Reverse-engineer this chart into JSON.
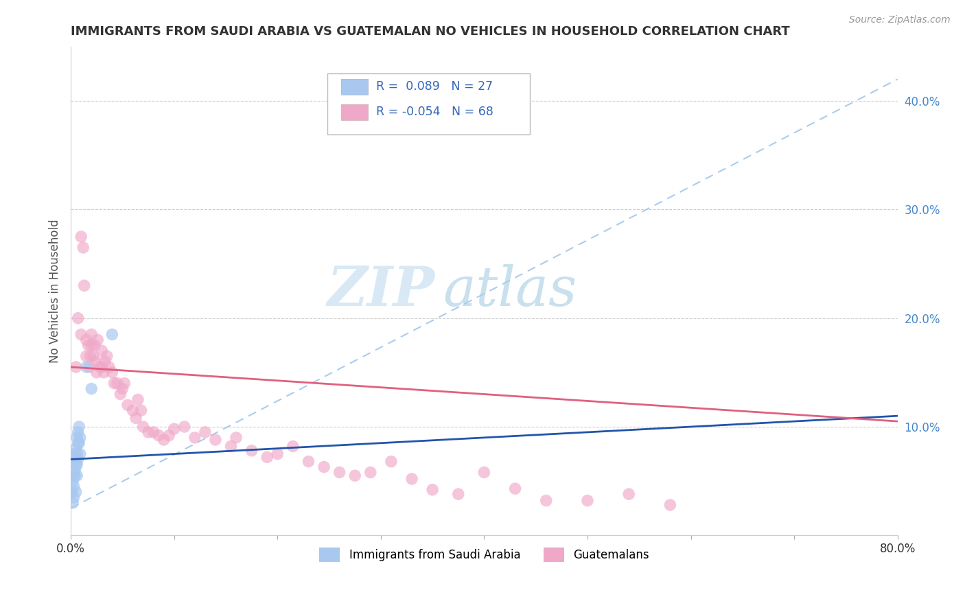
{
  "title": "IMMIGRANTS FROM SAUDI ARABIA VS GUATEMALAN NO VEHICLES IN HOUSEHOLD CORRELATION CHART",
  "source_text": "Source: ZipAtlas.com",
  "ylabel": "No Vehicles in Household",
  "xlim": [
    0.0,
    0.8
  ],
  "ylim": [
    0.0,
    0.45
  ],
  "y_ticks_right": [
    0.1,
    0.2,
    0.3,
    0.4
  ],
  "legend_r1": "0.089",
  "legend_n1": "27",
  "legend_r2": "-0.054",
  "legend_n2": "68",
  "color_blue": "#a8c8f0",
  "color_pink": "#f0a8c8",
  "color_blue_line": "#2255aa",
  "color_pink_line": "#e06080",
  "color_dashed": "#aaccee",
  "watermark_zip": "ZIP",
  "watermark_atlas": "atlas",
  "watermark_color": "#cce0f0",
  "background_color": "#ffffff",
  "grid_color": "#cccccc",
  "blue_scatter_x": [
    0.001,
    0.002,
    0.002,
    0.003,
    0.003,
    0.003,
    0.004,
    0.004,
    0.004,
    0.005,
    0.005,
    0.005,
    0.005,
    0.006,
    0.006,
    0.006,
    0.006,
    0.007,
    0.007,
    0.007,
    0.008,
    0.008,
    0.009,
    0.009,
    0.015,
    0.02,
    0.04
  ],
  "blue_scatter_y": [
    0.04,
    0.05,
    0.03,
    0.055,
    0.045,
    0.035,
    0.06,
    0.075,
    0.055,
    0.065,
    0.08,
    0.07,
    0.04,
    0.09,
    0.075,
    0.065,
    0.055,
    0.085,
    0.095,
    0.07,
    0.1,
    0.085,
    0.09,
    0.075,
    0.155,
    0.135,
    0.185
  ],
  "pink_scatter_x": [
    0.005,
    0.007,
    0.01,
    0.01,
    0.012,
    0.013,
    0.015,
    0.015,
    0.017,
    0.018,
    0.019,
    0.02,
    0.02,
    0.022,
    0.023,
    0.024,
    0.025,
    0.026,
    0.028,
    0.03,
    0.03,
    0.032,
    0.033,
    0.035,
    0.037,
    0.04,
    0.042,
    0.045,
    0.048,
    0.05,
    0.052,
    0.055,
    0.06,
    0.063,
    0.065,
    0.068,
    0.07,
    0.075,
    0.08,
    0.085,
    0.09,
    0.095,
    0.1,
    0.11,
    0.12,
    0.13,
    0.14,
    0.155,
    0.16,
    0.175,
    0.19,
    0.2,
    0.215,
    0.23,
    0.245,
    0.26,
    0.275,
    0.29,
    0.31,
    0.33,
    0.35,
    0.375,
    0.4,
    0.43,
    0.46,
    0.5,
    0.54,
    0.58
  ],
  "pink_scatter_y": [
    0.155,
    0.2,
    0.185,
    0.275,
    0.265,
    0.23,
    0.18,
    0.165,
    0.175,
    0.155,
    0.165,
    0.175,
    0.185,
    0.165,
    0.175,
    0.16,
    0.15,
    0.18,
    0.155,
    0.155,
    0.17,
    0.15,
    0.16,
    0.165,
    0.155,
    0.15,
    0.14,
    0.14,
    0.13,
    0.135,
    0.14,
    0.12,
    0.115,
    0.108,
    0.125,
    0.115,
    0.1,
    0.095,
    0.095,
    0.092,
    0.088,
    0.092,
    0.098,
    0.1,
    0.09,
    0.095,
    0.088,
    0.082,
    0.09,
    0.078,
    0.072,
    0.075,
    0.082,
    0.068,
    0.063,
    0.058,
    0.055,
    0.058,
    0.068,
    0.052,
    0.042,
    0.038,
    0.058,
    0.043,
    0.032,
    0.032,
    0.038,
    0.028
  ]
}
